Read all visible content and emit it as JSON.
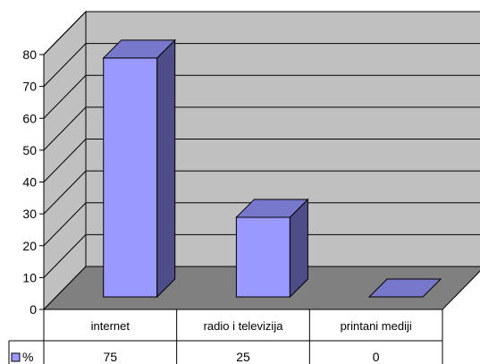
{
  "chart_data": {
    "type": "bar",
    "style": "3d-column",
    "categories": [
      "internet",
      "radio i televizija",
      "printani mediji"
    ],
    "series": [
      {
        "name": "%",
        "values": [
          75,
          25,
          0
        ]
      }
    ],
    "ylim": [
      0,
      80
    ],
    "yticks": [
      0,
      10,
      20,
      30,
      40,
      50,
      60,
      70,
      80
    ],
    "grid": true,
    "data_table": true,
    "colors": {
      "bar_front": "#9999ff",
      "bar_side": "#4d4d8a",
      "bar_top": "#7777cc",
      "back_wall": "#c0c0c0",
      "side_wall": "#c0c0c0",
      "floor": "#808080"
    }
  }
}
